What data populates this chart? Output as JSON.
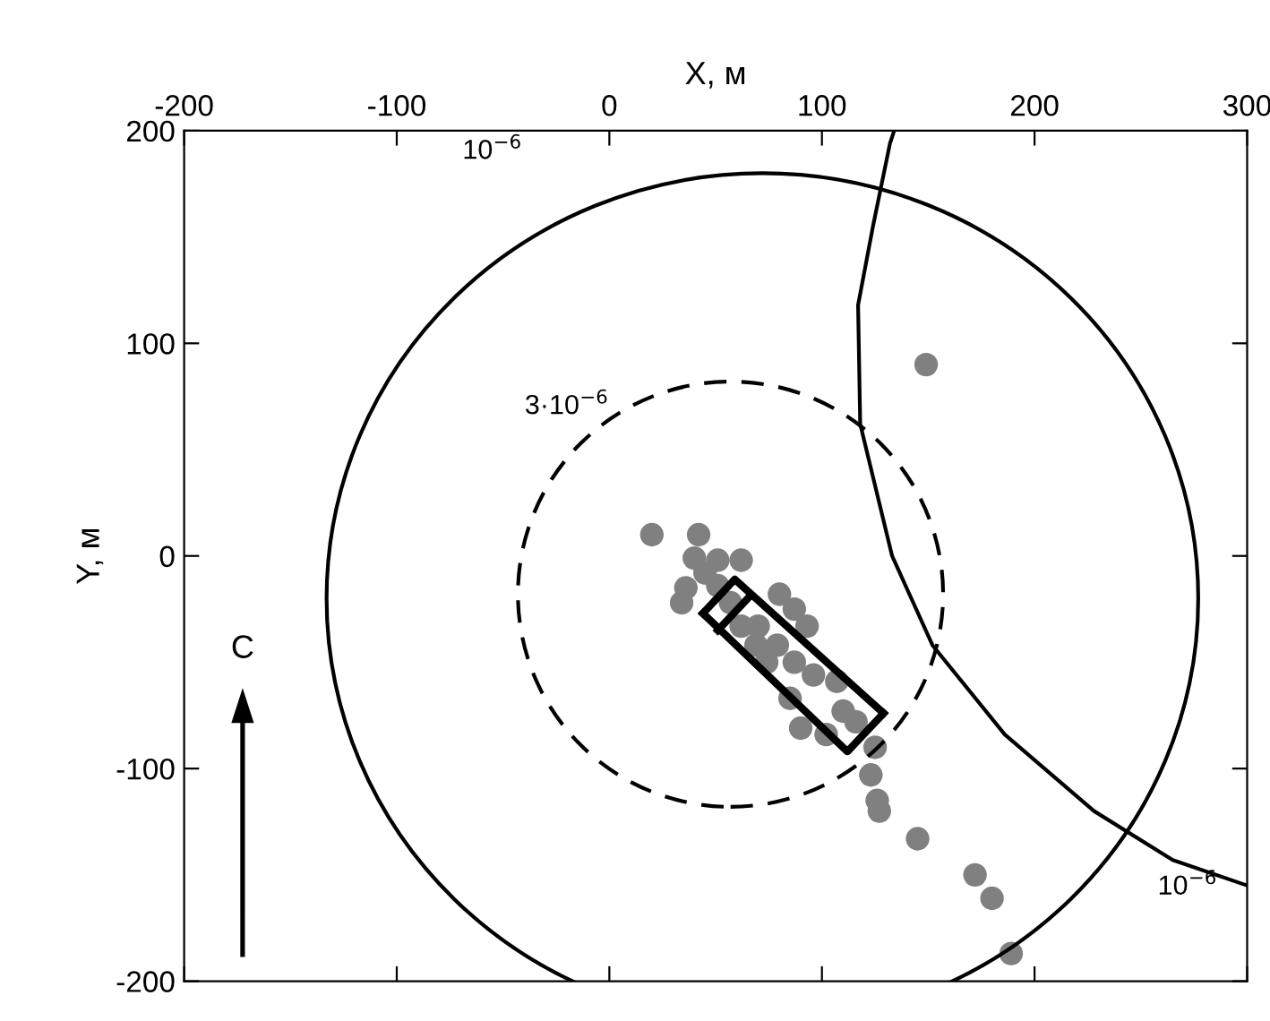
{
  "chart_data": {
    "type": "scatter",
    "xlabel": "X, м",
    "ylabel": "Y, м",
    "xlim": [
      -200,
      300
    ],
    "xticks": [
      -200,
      -100,
      0,
      100,
      200,
      300
    ],
    "ylim": [
      -200,
      200
    ],
    "yticks": [
      -200,
      -100,
      0,
      100,
      200
    ],
    "tick_labels": "xy",
    "series": [
      {
        "type": "line",
        "color": "#000000",
        "line_style": "solid",
        "marker": "none",
        "x": [
          134,
          132,
          124,
          117,
          118,
          133,
          152,
          186,
          228,
          265,
          300
        ],
        "values": [
          200,
          194,
          155,
          118,
          62,
          0,
          -42,
          -84,
          -120,
          -143,
          -155
        ]
      },
      {
        "color": "#808080",
        "marker": "circle",
        "x": [
          20,
          42,
          40,
          51,
          62,
          45,
          36,
          51,
          34,
          80,
          87,
          93,
          70,
          79,
          87,
          96,
          85,
          107,
          110,
          90,
          102,
          116,
          125,
          123,
          126,
          127,
          145,
          62,
          74,
          57,
          69,
          149,
          172,
          180,
          189
        ],
        "values": [
          10,
          10,
          -1,
          -2,
          -2,
          -8,
          -15,
          -14,
          -22,
          -18,
          -25,
          -33,
          -33,
          -42,
          -50,
          -56,
          -67,
          -59,
          -73,
          -81,
          -84,
          -78,
          -90,
          -103,
          -115,
          -120,
          -133,
          -33,
          -50,
          -22,
          -42,
          90,
          -150,
          -161,
          -187
        ]
      },
      {
        "type": "line",
        "color": "#000000",
        "line_style": "solid",
        "marker": "none",
        "x": [
          44,
          59,
          129
        ],
        "values": [
          -27,
          -11,
          -74
        ]
      },
      {
        "type": "line",
        "color": "#000000",
        "line_style": "solid",
        "marker": "none",
        "x": [
          44,
          112,
          129
        ],
        "values": [
          -27,
          -92,
          -74
        ]
      },
      {
        "type": "line",
        "color": "#000000",
        "line_style": "solid",
        "marker": "none",
        "x": [
          51,
          66
        ],
        "values": [
          -35,
          -19
        ]
      }
    ],
    "annotations": [
      "10$^{−6}$",
      "3·10$^{−6}$",
      "10$^{−6}$",
      "С"
    ]
  }
}
